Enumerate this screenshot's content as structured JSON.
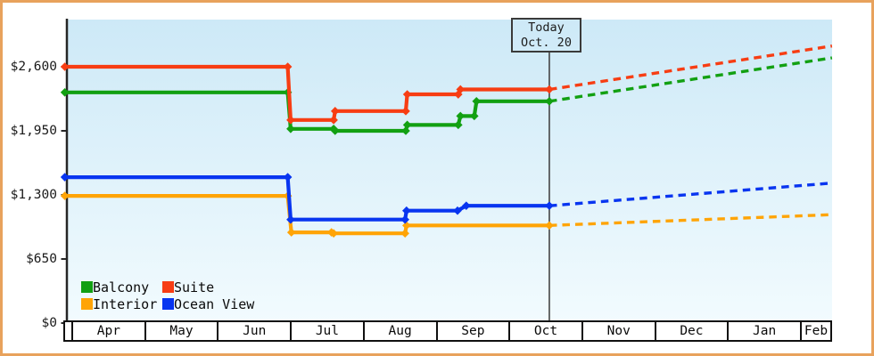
{
  "frame": {
    "border_color": "#e8a25c"
  },
  "chart_data": {
    "type": "line",
    "title": "",
    "subtitle": "",
    "grid": "off",
    "legend_position": "bottom-left-inside",
    "plot": {
      "bg_top_color": "#cde9f7",
      "bg_bottom_color": "#f2fbfe",
      "axis_color": "#262626",
      "today_line_color": "#444444"
    },
    "ylabel": "",
    "xlabel": "",
    "ylim": [
      0,
      3080
    ],
    "y_ticks": [
      {
        "value": 0,
        "label": "$0"
      },
      {
        "value": 650,
        "label": "$650"
      },
      {
        "value": 1300,
        "label": "$1,300"
      },
      {
        "value": 1950,
        "label": "$1,950"
      },
      {
        "value": 2600,
        "label": "$2,600"
      }
    ],
    "months": [
      "Apr",
      "May",
      "Jun",
      "Jul",
      "Aug",
      "Sep",
      "Oct",
      "Nov",
      "Dec",
      "Jan",
      "Feb"
    ],
    "today": {
      "line1": "Today",
      "line2": "Oct. 20",
      "x_months": 6.56
    },
    "x_forecast_end": 10.44,
    "series": [
      {
        "name": "Interior",
        "color": "#ffa406",
        "points": [
          [
            -0.09,
            1290
          ],
          [
            2.97,
            1290
          ],
          [
            3.02,
            920
          ],
          [
            3.57,
            920
          ],
          [
            3.6,
            910
          ],
          [
            4.58,
            910
          ],
          [
            4.6,
            990
          ],
          [
            6.56,
            990
          ]
        ],
        "forecast": [
          [
            6.56,
            990
          ],
          [
            10.44,
            1100
          ]
        ]
      },
      {
        "name": "Ocean View",
        "color": "#0835f0",
        "points": [
          [
            -0.09,
            1480
          ],
          [
            2.97,
            1480
          ],
          [
            3.01,
            1050
          ],
          [
            4.58,
            1050
          ],
          [
            4.6,
            1140
          ],
          [
            5.3,
            1140
          ],
          [
            5.42,
            1190
          ],
          [
            6.56,
            1190
          ]
        ],
        "forecast": [
          [
            6.56,
            1190
          ],
          [
            10.44,
            1420
          ]
        ]
      },
      {
        "name": "Balcony",
        "color": "#12a012",
        "points": [
          [
            -0.09,
            2340
          ],
          [
            2.97,
            2340
          ],
          [
            3.01,
            1970
          ],
          [
            3.6,
            1970
          ],
          [
            3.62,
            1950
          ],
          [
            4.59,
            1950
          ],
          [
            4.61,
            2010
          ],
          [
            5.31,
            2010
          ],
          [
            5.34,
            2100
          ],
          [
            5.53,
            2100
          ],
          [
            5.56,
            2250
          ],
          [
            6.56,
            2250
          ]
        ],
        "forecast": [
          [
            6.56,
            2250
          ],
          [
            10.44,
            2690
          ]
        ]
      },
      {
        "name": "Suite",
        "color": "#f73d13",
        "points": [
          [
            -0.09,
            2600
          ],
          [
            2.97,
            2600
          ],
          [
            3.01,
            2060
          ],
          [
            3.6,
            2060
          ],
          [
            3.62,
            2150
          ],
          [
            4.59,
            2150
          ],
          [
            4.61,
            2320
          ],
          [
            5.31,
            2320
          ],
          [
            5.34,
            2370
          ],
          [
            6.56,
            2370
          ]
        ],
        "forecast": [
          [
            6.56,
            2370
          ],
          [
            10.44,
            2810
          ]
        ]
      }
    ],
    "legend": [
      {
        "label": "Balcony",
        "color": "#12a012"
      },
      {
        "label": "Suite",
        "color": "#f73d13"
      },
      {
        "label": "Interior",
        "color": "#ffa406"
      },
      {
        "label": "Ocean View",
        "color": "#0835f0"
      }
    ]
  }
}
